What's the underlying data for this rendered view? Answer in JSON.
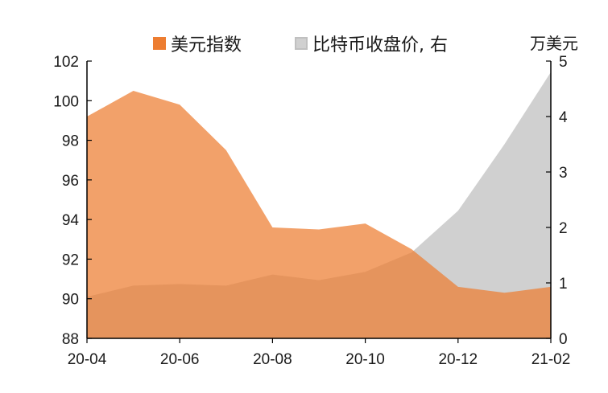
{
  "chart_data": {
    "type": "area",
    "x": [
      "20-04",
      "20-05",
      "20-06",
      "20-07",
      "20-08",
      "20-09",
      "20-10",
      "20-11",
      "20-12",
      "21-01",
      "21-02"
    ],
    "xticks": [
      "20-04",
      "20-06",
      "20-08",
      "20-10",
      "20-12",
      "21-02"
    ],
    "series": [
      {
        "name": "美元指数",
        "axis": "left",
        "color": "#ED7D31",
        "values": [
          99.2,
          100.5,
          99.8,
          97.5,
          93.6,
          93.5,
          93.8,
          92.5,
          90.6,
          90.3,
          90.6
        ]
      },
      {
        "name": "比特币收盘价, 右",
        "axis": "right",
        "color": "#D0D0D0",
        "values": [
          0.75,
          0.95,
          0.98,
          0.95,
          1.15,
          1.05,
          1.2,
          1.55,
          2.3,
          3.5,
          4.8
        ]
      }
    ],
    "left_axis": {
      "min": 88,
      "max": 102,
      "ticks": [
        88,
        90,
        92,
        94,
        96,
        98,
        100,
        102
      ]
    },
    "right_axis": {
      "min": 0,
      "max": 5,
      "ticks": [
        0,
        1,
        2,
        3,
        4,
        5
      ],
      "label": "万美元"
    },
    "legend_position": "top",
    "grid": false
  },
  "legend": {
    "usd_label": "美元指数",
    "btc_label": "比特币收盘价, 右",
    "right_unit": "万美元"
  }
}
